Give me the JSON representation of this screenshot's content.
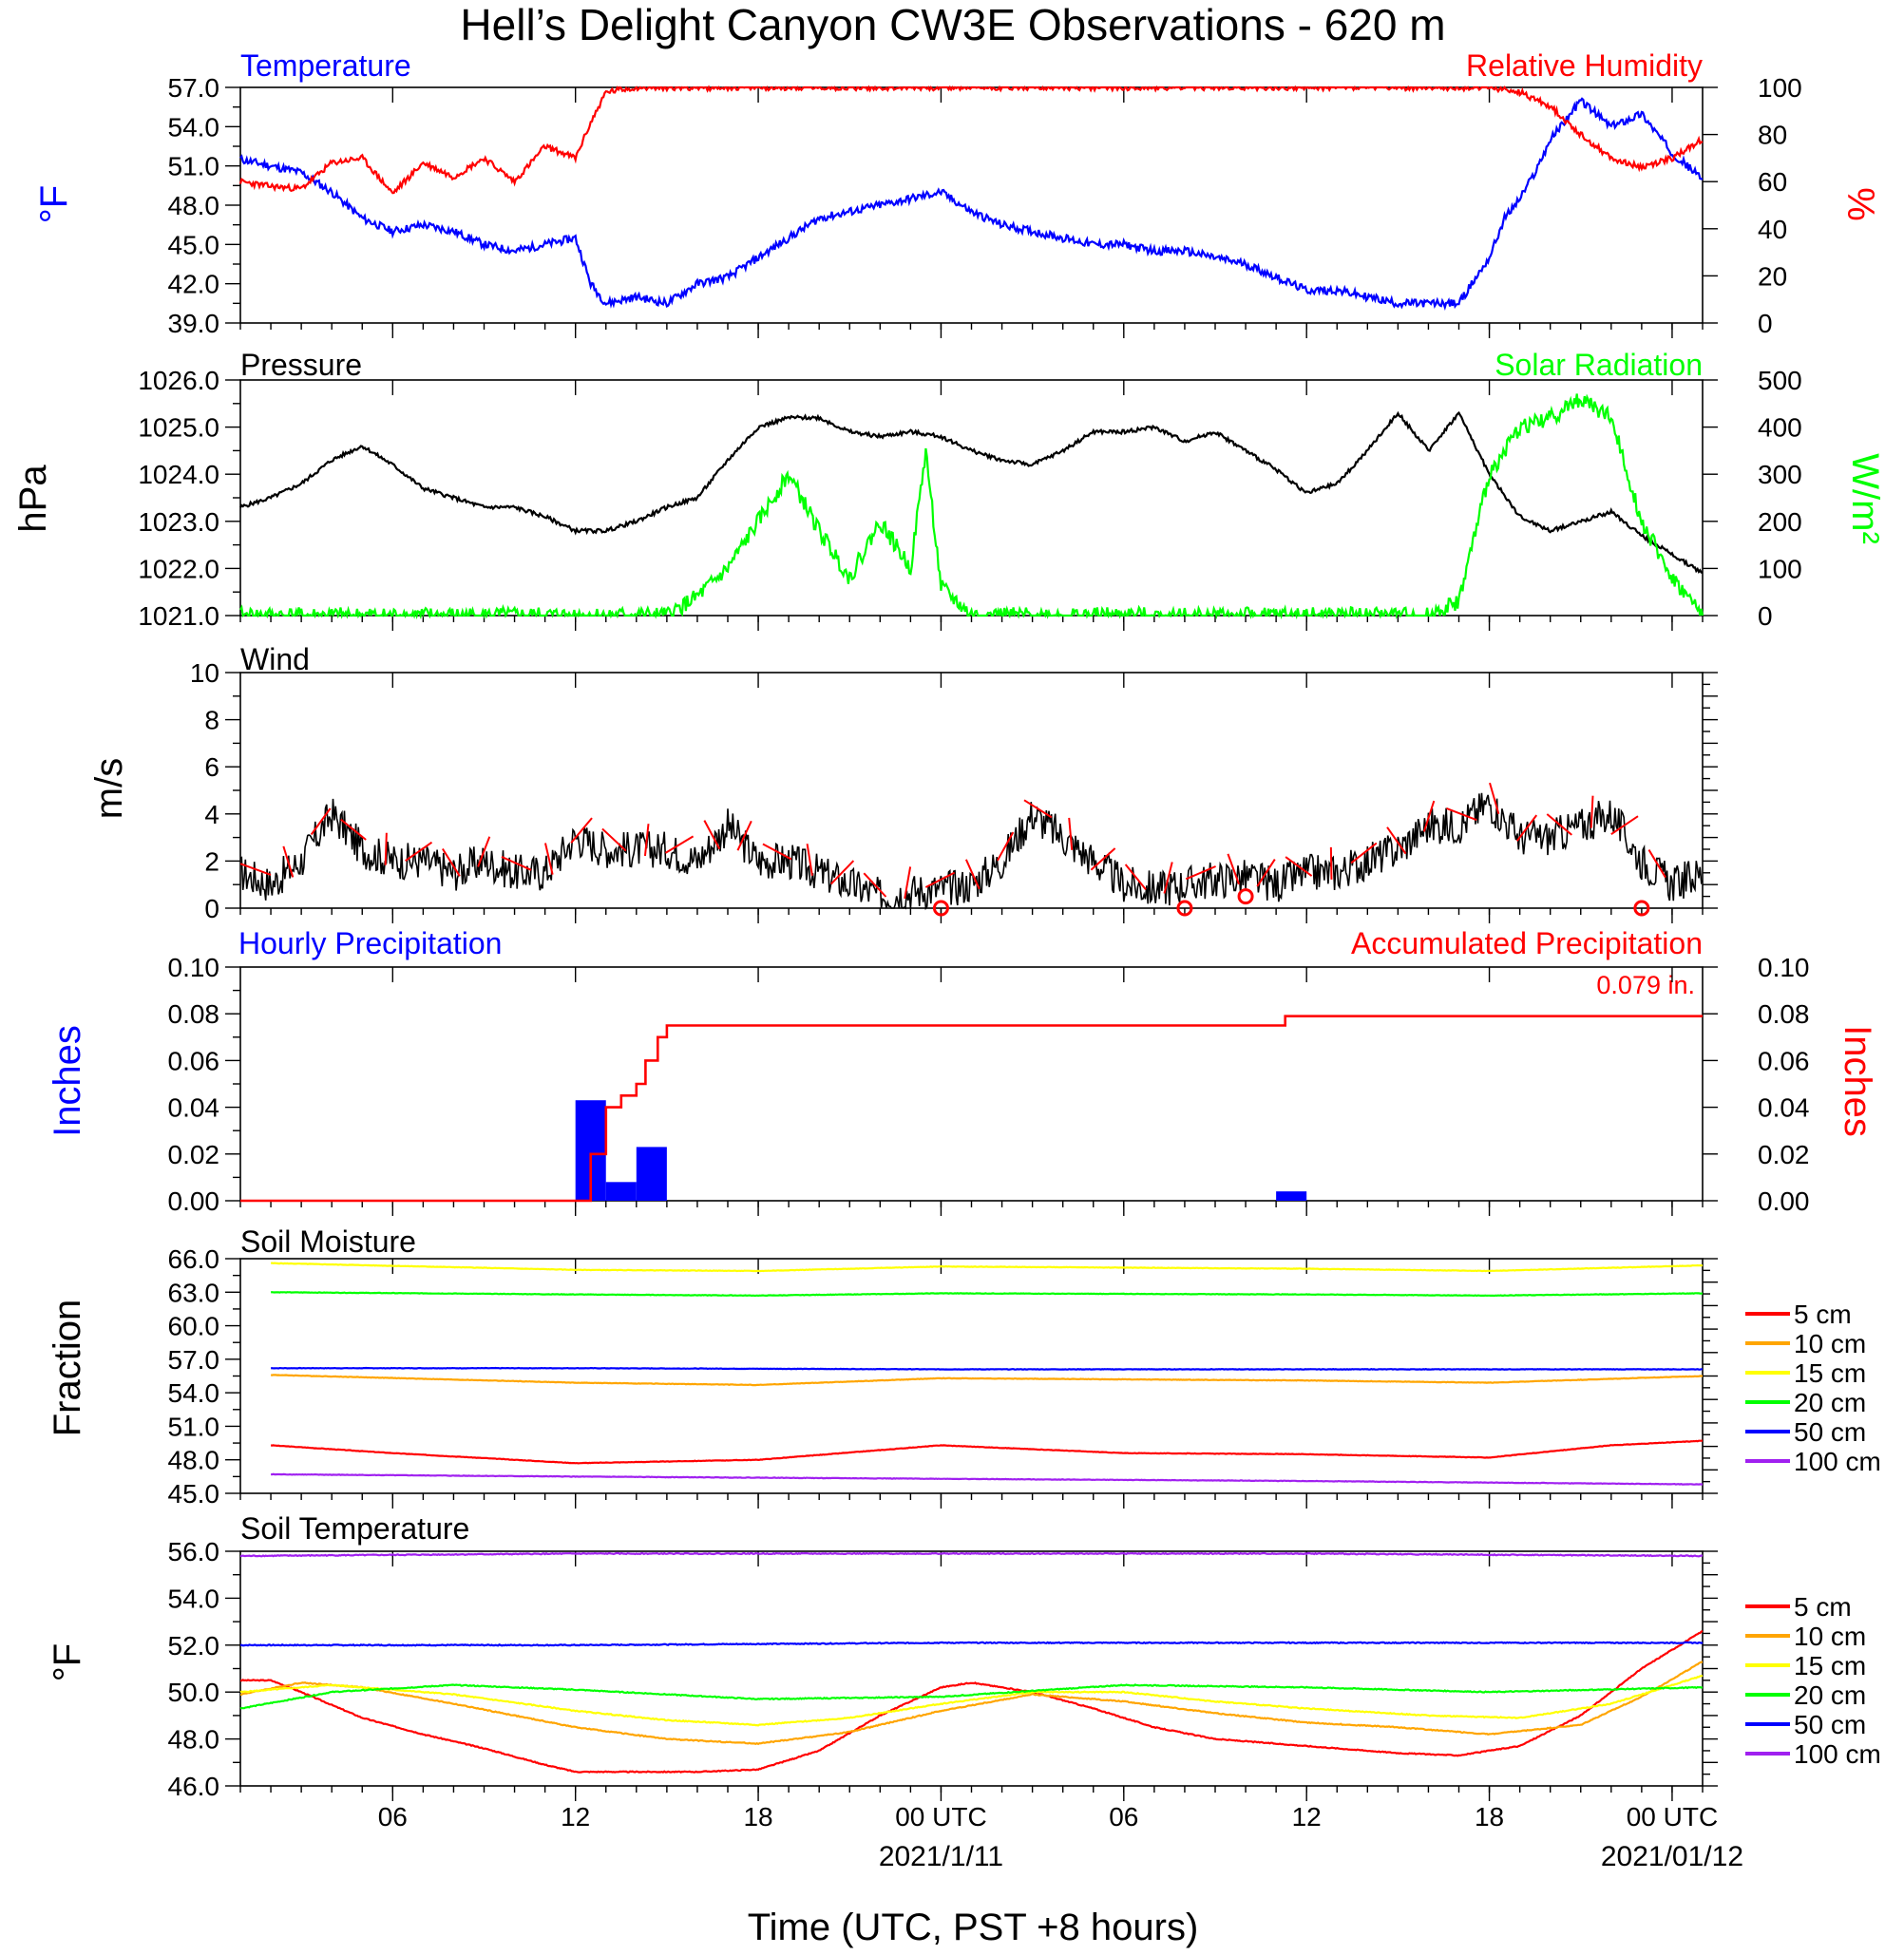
{
  "title": "Hell’s Delight Canyon CW3E Observations - 620 m",
  "xlabel": "Time (UTC, PST +8 hours)",
  "x_axis": {
    "ticks": [
      {
        "hour": 6,
        "label": "06",
        "date": ""
      },
      {
        "hour": 12,
        "label": "12",
        "date": ""
      },
      {
        "hour": 18,
        "label": "18",
        "date": ""
      },
      {
        "hour": 24,
        "label": "00 UTC",
        "date": "2021/1/11"
      },
      {
        "hour": 30,
        "label": "06",
        "date": ""
      },
      {
        "hour": 36,
        "label": "12",
        "date": ""
      },
      {
        "hour": 42,
        "label": "18",
        "date": ""
      },
      {
        "hour": 48,
        "label": "00 UTC",
        "date": "2021/01/12"
      }
    ],
    "range_hours": [
      1,
      49
    ]
  },
  "panels": {
    "temp_rh": {
      "left_label": "Temperature",
      "right_label": "Relative Humidity",
      "left_unit": "°F",
      "right_unit": "%",
      "left_ticks": [
        "57.0",
        "54.0",
        "51.0",
        "48.0",
        "45.0",
        "42.0",
        "39.0"
      ],
      "right_ticks": [
        "100",
        "80",
        "60",
        "40",
        "20",
        "0"
      ]
    },
    "press_solar": {
      "left_label": "Pressure",
      "right_label": "Solar Radiation",
      "left_unit": "hPa",
      "right_unit": "W/m²",
      "left_ticks": [
        "1026.0",
        "1025.0",
        "1024.0",
        "1023.0",
        "1022.0",
        "1021.0"
      ],
      "right_ticks": [
        "500",
        "400",
        "300",
        "200",
        "100",
        "0"
      ]
    },
    "wind": {
      "left_label": "Wind",
      "left_unit": "m/s",
      "left_ticks": [
        "10",
        "8",
        "6",
        "4",
        "2",
        "0"
      ]
    },
    "precip": {
      "left_label": "Hourly Precipitation",
      "right_label": "Accumulated Precipitation",
      "left_unit": "Inches",
      "right_unit": "Inches",
      "total_label": "0.079 in.",
      "left_ticks": [
        "0.10",
        "0.08",
        "0.06",
        "0.04",
        "0.02",
        "0.00"
      ],
      "right_ticks": [
        "0.10",
        "0.08",
        "0.06",
        "0.04",
        "0.02",
        "0.00"
      ]
    },
    "soil_moisture": {
      "left_label": "Soil Moisture",
      "left_unit": "Fraction",
      "left_ticks": [
        "66.0",
        "63.0",
        "60.0",
        "57.0",
        "54.0",
        "51.0",
        "48.0",
        "45.0"
      ]
    },
    "soil_temp": {
      "left_label": "Soil Temperature",
      "left_unit": "°F",
      "left_ticks": [
        "56.0",
        "54.0",
        "52.0",
        "50.0",
        "48.0",
        "46.0"
      ]
    }
  },
  "depth_legend": [
    "5 cm",
    "10 cm",
    "15 cm",
    "20 cm",
    "50 cm",
    "100 cm"
  ],
  "colors": {
    "temperature": "#0000ff",
    "humidity": "#ff0000",
    "pressure": "#000000",
    "solar": "#00ff00",
    "wind": "#000000",
    "barbs": "#ff0000",
    "precip_bar": "#0000ff",
    "precip_acc": "#ff0000",
    "depths": [
      "#ff0000",
      "#ffa500",
      "#ffff00",
      "#00ff00",
      "#0000ff",
      "#a020f0"
    ]
  },
  "chart_data": [
    {
      "type": "line",
      "title": "Temperature / Relative Humidity",
      "series": [
        {
          "name": "Temperature",
          "axis": "left",
          "x": [
            1,
            2,
            3,
            4,
            5,
            6,
            7,
            8,
            9,
            10,
            11,
            12,
            12.5,
            13,
            14,
            15,
            16,
            17,
            18,
            19,
            20,
            21,
            22,
            23,
            24,
            25,
            26,
            27,
            28,
            29,
            30,
            31,
            32,
            33,
            34,
            35,
            36,
            37,
            38,
            39,
            40,
            41,
            42,
            42.5,
            43,
            43.5,
            44,
            45,
            46,
            47,
            48,
            49
          ],
          "y": [
            51.5,
            51,
            50.5,
            49,
            47,
            46,
            46.5,
            46,
            45,
            44.5,
            45,
            45.5,
            42,
            40.5,
            41,
            40.5,
            42,
            42.5,
            44,
            45.5,
            47,
            47.5,
            48,
            48.5,
            49,
            47.5,
            46.5,
            46,
            45.5,
            45,
            45,
            44.5,
            44.5,
            44,
            43.5,
            42.5,
            41.5,
            41.5,
            41,
            40.5,
            40.5,
            40.5,
            44,
            47,
            48.5,
            50.5,
            53,
            56,
            54,
            55,
            52,
            50
          ]
        },
        {
          "name": "Relative Humidity",
          "axis": "right",
          "x": [
            1,
            2,
            3,
            4,
            5,
            6,
            7,
            8,
            9,
            10,
            11,
            12,
            12.5,
            13,
            14,
            18,
            24,
            30,
            36,
            42,
            43,
            44,
            45,
            46,
            47,
            48,
            49
          ],
          "y": [
            60,
            58,
            57,
            68,
            70,
            55,
            68,
            62,
            70,
            60,
            75,
            70,
            85,
            98,
            100,
            100,
            100,
            100,
            100,
            100,
            98,
            92,
            80,
            70,
            66,
            70,
            78
          ]
        }
      ],
      "ylim_left": [
        39,
        57
      ],
      "ylim_right": [
        0,
        100
      ]
    },
    {
      "type": "line",
      "title": "Pressure / Solar Radiation",
      "series": [
        {
          "name": "Pressure",
          "axis": "left",
          "x": [
            1,
            2,
            3,
            4,
            5,
            6,
            7,
            8,
            9,
            10,
            11,
            12,
            13,
            14,
            15,
            16,
            17,
            18,
            19,
            20,
            21,
            22,
            23,
            24,
            25,
            26,
            27,
            28,
            29,
            30,
            31,
            32,
            33,
            34,
            35,
            36,
            37,
            38,
            39,
            40,
            41,
            42,
            43,
            44,
            45,
            46,
            47,
            48,
            49
          ],
          "y": [
            1023.3,
            1023.5,
            1023.8,
            1024.3,
            1024.6,
            1024.2,
            1023.7,
            1023.5,
            1023.3,
            1023.3,
            1023.1,
            1022.8,
            1022.8,
            1023,
            1023.3,
            1023.5,
            1024.3,
            1025,
            1025.2,
            1025.2,
            1024.9,
            1024.8,
            1024.9,
            1024.8,
            1024.5,
            1024.3,
            1024.2,
            1024.5,
            1024.9,
            1024.9,
            1025,
            1024.7,
            1024.9,
            1024.5,
            1024.1,
            1023.6,
            1023.8,
            1024.5,
            1025.3,
            1024.5,
            1025.3,
            1024,
            1023.1,
            1022.8,
            1023,
            1023.2,
            1022.7,
            1022.3,
            1021.9
          ]
        },
        {
          "name": "Solar Radiation",
          "axis": "right",
          "x": [
            1,
            15,
            16,
            17,
            18,
            19,
            20,
            21,
            22,
            23,
            23.5,
            24,
            25,
            40,
            41,
            42,
            43,
            44,
            45,
            46,
            47,
            48,
            49
          ],
          "y": [
            0,
            0,
            40,
            100,
            200,
            300,
            180,
            80,
            200,
            100,
            350,
            60,
            0,
            0,
            30,
            300,
            400,
            420,
            460,
            420,
            200,
            80,
            0
          ]
        }
      ],
      "ylim_left": [
        1021,
        1026
      ],
      "ylim_right": [
        0,
        500
      ]
    },
    {
      "type": "line",
      "title": "Wind",
      "series": [
        {
          "name": "Wind speed",
          "x": [
            1,
            2,
            3,
            4,
            5,
            6,
            7,
            8,
            9,
            10,
            11,
            12,
            13,
            14,
            15,
            16,
            17,
            18,
            19,
            20,
            21,
            22,
            23,
            24,
            25,
            26,
            27,
            28,
            29,
            30,
            31,
            32,
            33,
            34,
            35,
            36,
            37,
            38,
            39,
            40,
            41,
            42,
            43,
            44,
            45,
            46,
            47,
            48,
            49
          ],
          "y": [
            1.5,
            1,
            2,
            4,
            2.5,
            2,
            2,
            1.5,
            2,
            1.5,
            1.5,
            3,
            2.5,
            2.5,
            2.5,
            2,
            3.5,
            2,
            2,
            1.5,
            1,
            0.5,
            0.7,
            0.8,
            1,
            2,
            4,
            3,
            2,
            1,
            0.8,
            1,
            1.2,
            1.3,
            1,
            1.5,
            1.5,
            2,
            2.5,
            3.5,
            3.5,
            4.5,
            3,
            3,
            3.5,
            4,
            2,
            1,
            1.5
          ]
        },
        {
          "name": "Calm",
          "x": [
            24,
            32,
            34,
            47
          ],
          "y": [
            0,
            0,
            0.5,
            0
          ]
        }
      ],
      "ylim": [
        0,
        10
      ]
    },
    {
      "type": "bar",
      "title": "Hourly / Accumulated Precipitation",
      "series": [
        {
          "name": "Hourly Precipitation",
          "axis": "left",
          "x": [
            12,
            13,
            14,
            35
          ],
          "y": [
            0.043,
            0.008,
            0.023,
            0.004
          ],
          "width": 1
        },
        {
          "name": "Accumulated Precipitation",
          "axis": "right",
          "x": [
            1,
            12,
            12.5,
            13,
            13.5,
            14,
            14.3,
            14.7,
            15,
            35,
            35.3,
            49
          ],
          "y": [
            0,
            0,
            0.02,
            0.04,
            0.045,
            0.05,
            0.06,
            0.07,
            0.075,
            0.075,
            0.079,
            0.079
          ]
        }
      ],
      "ylim_left": [
        0,
        0.1
      ],
      "ylim_right": [
        0,
        0.1
      ]
    },
    {
      "type": "line",
      "title": "Soil Moisture",
      "series": [
        {
          "name": "5 cm",
          "x": [
            2,
            6,
            12,
            18,
            24,
            30,
            36,
            42,
            46,
            49
          ],
          "y": [
            49.3,
            48.6,
            47.7,
            48,
            49.3,
            48.6,
            48.5,
            48.2,
            49.3,
            49.7
          ]
        },
        {
          "name": "10 cm",
          "x": [
            2,
            12,
            18,
            24,
            36,
            42,
            49
          ],
          "y": [
            55.6,
            54.9,
            54.7,
            55.3,
            55.1,
            54.9,
            55.5
          ]
        },
        {
          "name": "15 cm",
          "x": [
            2,
            12,
            18,
            24,
            36,
            42,
            49
          ],
          "y": [
            65.6,
            65.0,
            64.9,
            65.3,
            65.1,
            64.9,
            65.4
          ]
        },
        {
          "name": "20 cm",
          "x": [
            2,
            12,
            18,
            24,
            36,
            42,
            49
          ],
          "y": [
            63.0,
            62.8,
            62.7,
            62.9,
            62.8,
            62.7,
            62.9
          ]
        },
        {
          "name": "50 cm",
          "x": [
            2,
            12,
            24,
            36,
            49
          ],
          "y": [
            56.2,
            56.2,
            56.1,
            56.1,
            56.1
          ]
        },
        {
          "name": "100 cm",
          "x": [
            2,
            12,
            24,
            36,
            49
          ],
          "y": [
            46.7,
            46.5,
            46.3,
            46.1,
            45.8
          ]
        }
      ],
      "ylim": [
        45,
        66
      ]
    },
    {
      "type": "line",
      "title": "Soil Temperature",
      "series": [
        {
          "name": "5 cm",
          "x": [
            1,
            2,
            3,
            5,
            7,
            9,
            11,
            12,
            14,
            16,
            18,
            20,
            22,
            24,
            25,
            27,
            29,
            31,
            33,
            35,
            37,
            39,
            41,
            43,
            45,
            47,
            49
          ],
          "y": [
            50.5,
            50.5,
            50.0,
            48.9,
            48.2,
            47.6,
            46.9,
            46.6,
            46.6,
            46.6,
            46.7,
            47.5,
            49.0,
            50.2,
            50.4,
            50.0,
            49.3,
            48.5,
            48.0,
            47.8,
            47.6,
            47.4,
            47.3,
            47.7,
            49.0,
            51.0,
            52.6
          ]
        },
        {
          "name": "10 cm",
          "x": [
            1,
            3,
            5,
            8,
            12,
            15,
            18,
            21,
            24,
            27,
            30,
            33,
            36,
            39,
            42,
            45,
            47,
            49
          ],
          "y": [
            49.9,
            50.4,
            50.2,
            49.5,
            48.5,
            48.0,
            47.8,
            48.3,
            49.2,
            49.9,
            49.6,
            49.1,
            48.7,
            48.5,
            48.2,
            48.6,
            49.8,
            51.3
          ]
        },
        {
          "name": "15 cm",
          "x": [
            1,
            4,
            8,
            12,
            15,
            18,
            21,
            24,
            27,
            30,
            33,
            36,
            40,
            43,
            46,
            49
          ],
          "y": [
            50.0,
            50.3,
            49.9,
            49.2,
            48.8,
            48.6,
            48.9,
            49.5,
            50.0,
            50.0,
            49.6,
            49.3,
            49.0,
            48.9,
            49.5,
            50.7
          ]
        },
        {
          "name": "20 cm",
          "x": [
            1,
            4,
            8,
            12,
            18,
            24,
            30,
            36,
            42,
            49
          ],
          "y": [
            49.3,
            50.0,
            50.3,
            50.1,
            49.7,
            49.8,
            50.3,
            50.2,
            50.0,
            50.2
          ]
        },
        {
          "name": "50 cm",
          "x": [
            1,
            12,
            24,
            36,
            49
          ],
          "y": [
            52.0,
            52.0,
            52.1,
            52.1,
            52.1
          ]
        },
        {
          "name": "100 cm",
          "x": [
            1,
            12,
            24,
            36,
            49
          ],
          "y": [
            55.8,
            55.9,
            55.9,
            55.9,
            55.8
          ]
        }
      ],
      "ylim": [
        46,
        56
      ]
    }
  ]
}
